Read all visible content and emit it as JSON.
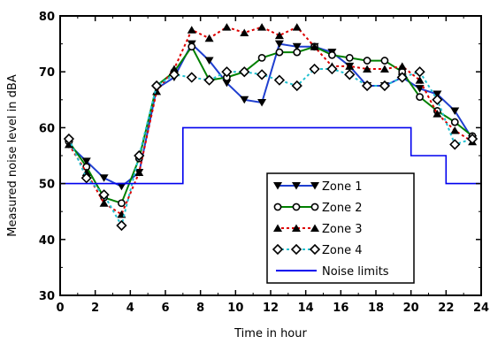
{
  "chart_data": {
    "type": "line",
    "xlabel": "Time in hour",
    "ylabel": "Measured noise level in dBA",
    "xlim": [
      0,
      24
    ],
    "ylim": [
      30,
      80
    ],
    "xticks": [
      0,
      2,
      4,
      6,
      8,
      10,
      12,
      14,
      16,
      18,
      20,
      22,
      24
    ],
    "yticks": [
      30,
      40,
      50,
      60,
      70,
      80
    ],
    "grid": false,
    "legend_position": "bottom-right",
    "series": [
      {
        "name": "Zone 1",
        "color": "#1f3fd0",
        "line_style": "solid",
        "marker": "triangle-down",
        "x": [
          0.5,
          1.5,
          2.5,
          3.5,
          4.5,
          5.5,
          6.5,
          7.5,
          8.5,
          9.5,
          10.5,
          11.5,
          12.5,
          13.5,
          14.5,
          15.5,
          16.5,
          17.5,
          18.5,
          19.5,
          20.5,
          21.5,
          22.5,
          23.5
        ],
        "values": [
          57,
          54,
          51,
          49.5,
          52,
          67,
          69,
          75,
          72,
          68,
          65,
          64.5,
          75,
          74.5,
          74.5,
          73.5,
          71,
          67.5,
          67.5,
          69,
          67,
          66,
          63,
          58
        ]
      },
      {
        "name": "Zone 2",
        "color": "#008000",
        "line_style": "solid",
        "marker": "circle-open",
        "x": [
          0.5,
          1.5,
          2.5,
          3.5,
          4.5,
          5.5,
          6.5,
          7.5,
          8.5,
          9.5,
          10.5,
          11.5,
          12.5,
          13.5,
          14.5,
          15.5,
          16.5,
          17.5,
          18.5,
          19.5,
          20.5,
          21.5,
          22.5,
          23.5
        ],
        "values": [
          57.5,
          53,
          47.5,
          46.5,
          54.5,
          67.5,
          70,
          74.5,
          68.5,
          69,
          70,
          72.5,
          73.5,
          73.5,
          74.5,
          73,
          72.5,
          72,
          72,
          70,
          65.5,
          63,
          61,
          58.5
        ]
      },
      {
        "name": "Zone 3",
        "color": "#dd0000",
        "line_style": "dotted",
        "marker": "triangle-up",
        "x": [
          0.5,
          1.5,
          2.5,
          3.5,
          4.5,
          5.5,
          6.5,
          7.5,
          8.5,
          9.5,
          10.5,
          11.5,
          12.5,
          13.5,
          14.5,
          15.5,
          16.5,
          17.5,
          18.5,
          19.5,
          20.5,
          21.5,
          22.5,
          23.5
        ],
        "values": [
          57,
          52,
          46.5,
          44.5,
          52,
          66.5,
          70.5,
          77.5,
          76,
          78,
          77,
          78,
          76.5,
          78,
          74.5,
          71,
          71,
          70.5,
          70.5,
          71,
          68.5,
          62.5,
          59.5,
          57.5
        ]
      },
      {
        "name": "Zone 4",
        "color": "#20c0d0",
        "line_style": "dotted",
        "marker": "diamond-open",
        "x": [
          0.5,
          1.5,
          2.5,
          3.5,
          4.5,
          5.5,
          6.5,
          7.5,
          8.5,
          9.5,
          10.5,
          11.5,
          12.5,
          13.5,
          14.5,
          15.5,
          16.5,
          17.5,
          18.5,
          19.5,
          20.5,
          21.5,
          22.5,
          23.5
        ],
        "values": [
          58,
          51,
          48,
          42.5,
          55,
          67.5,
          69.5,
          69,
          68.5,
          70,
          70,
          69.5,
          68.5,
          67.5,
          70.5,
          70.5,
          69.5,
          67.5,
          67.5,
          69,
          70,
          65,
          57,
          58
        ]
      },
      {
        "name": "Noise limits",
        "color": "#0000ee",
        "line_style": "solid",
        "marker": "none",
        "step": true,
        "x": [
          0,
          7,
          7,
          20,
          20,
          22,
          22,
          24
        ],
        "values": [
          50,
          50,
          60,
          60,
          55,
          55,
          50,
          50
        ]
      }
    ]
  }
}
